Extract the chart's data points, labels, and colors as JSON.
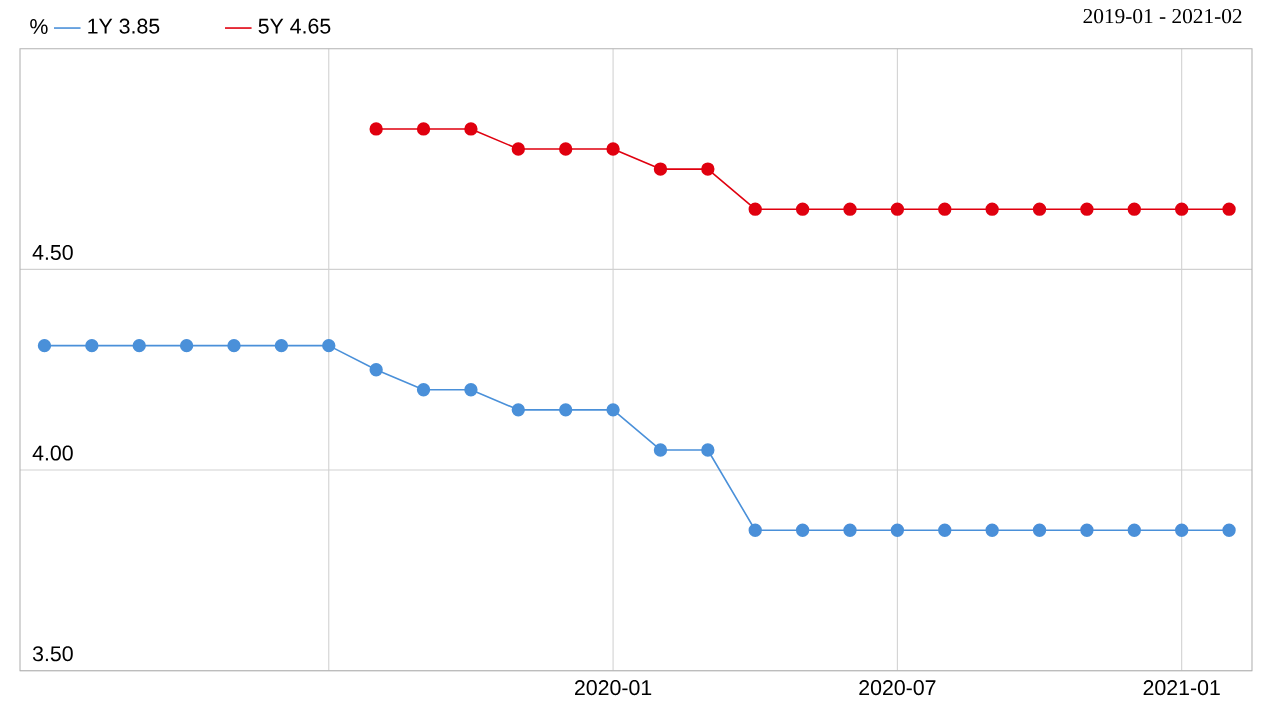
{
  "chart_data": {
    "type": "line",
    "subtitle": "2019-01 - 2021-02",
    "ylabel": "%",
    "x": [
      "2019-01",
      "2019-02",
      "2019-03",
      "2019-04",
      "2019-05",
      "2019-06",
      "2019-07",
      "2019-08",
      "2019-09",
      "2019-10",
      "2019-11",
      "2019-12",
      "2020-01",
      "2020-02",
      "2020-03",
      "2020-04",
      "2020-05",
      "2020-06",
      "2020-07",
      "2020-08",
      "2020-09",
      "2020-10",
      "2020-11",
      "2020-12",
      "2021-01",
      "2021-02"
    ],
    "series": [
      {
        "name": "1Y   3.85",
        "color": "#4a90d9",
        "values": [
          4.31,
          4.31,
          4.31,
          4.31,
          4.31,
          4.31,
          4.31,
          4.25,
          4.2,
          4.2,
          4.15,
          4.15,
          4.15,
          4.05,
          4.05,
          3.85,
          3.85,
          3.85,
          3.85,
          3.85,
          3.85,
          3.85,
          3.85,
          3.85,
          3.85,
          3.85
        ]
      },
      {
        "name": "5Y   4.65",
        "color": "#e0000f",
        "values": [
          null,
          null,
          null,
          null,
          null,
          null,
          null,
          4.85,
          4.85,
          4.85,
          4.8,
          4.8,
          4.8,
          4.75,
          4.75,
          4.65,
          4.65,
          4.65,
          4.65,
          4.65,
          4.65,
          4.65,
          4.65,
          4.65,
          4.65,
          4.65
        ]
      }
    ],
    "xlim": [
      "2018-12-16",
      "2021-02-16"
    ],
    "xticks": [
      {
        "value": "2019-07",
        "label": null
      },
      "2020-01",
      "2020-07",
      "2021-01"
    ],
    "ylim": [
      3.5,
      5.05
    ],
    "yticks": [
      {
        "value": 3.5,
        "label": "3.50"
      },
      {
        "value": 4.0,
        "label": "4.00"
      },
      {
        "value": 4.5,
        "label": "4.50"
      }
    ],
    "grid": true,
    "legend": "top left",
    "marker": "circle",
    "line_style": "solid"
  }
}
